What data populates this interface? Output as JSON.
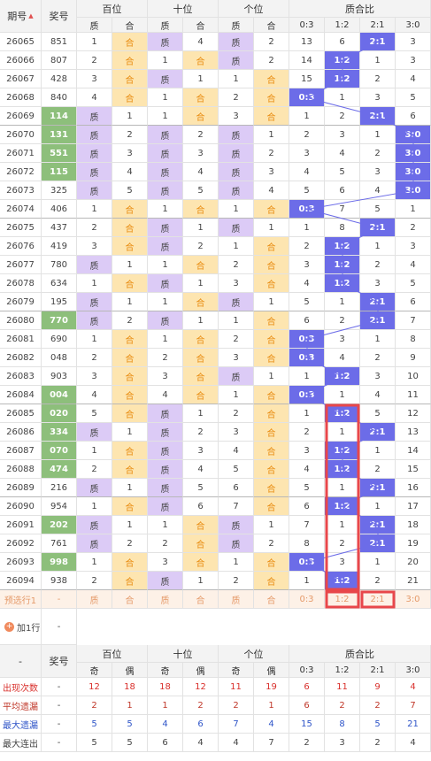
{
  "header": {
    "issue": "期号",
    "number": "奖号",
    "groups": [
      "百位",
      "十位",
      "个位",
      "质合比"
    ],
    "sub": [
      "质",
      "合",
      "质",
      "合",
      "质",
      "合",
      "0:3",
      "1:2",
      "2:1",
      "3:0"
    ]
  },
  "rows": [
    {
      "cells": [
        "26065",
        "851",
        "1",
        "合",
        "质",
        "4",
        "质",
        "2",
        "13",
        "6",
        "2:1",
        "3"
      ]
    },
    {
      "cells": [
        "26066",
        "807",
        "2",
        "合",
        "1",
        "合",
        "质",
        "2",
        "14",
        "1:2",
        "1",
        "3"
      ]
    },
    {
      "cells": [
        "26067",
        "428",
        "3",
        "合",
        "质",
        "1",
        "1",
        "合",
        "15",
        "1:2",
        "2",
        "4"
      ]
    },
    {
      "cells": [
        "26068",
        "840",
        "4",
        "合",
        "1",
        "合",
        "2",
        "合",
        "0:3",
        "1",
        "3",
        "5"
      ]
    },
    {
      "cells": [
        "26069",
        "114",
        "质",
        "1",
        "1",
        "合",
        "3",
        "合",
        "1",
        "2",
        "2:1",
        "6"
      ],
      "number_color": "#8dbf7b"
    },
    {
      "cells": [
        "26070",
        "131",
        "质",
        "2",
        "质",
        "2",
        "质",
        "1",
        "2",
        "3",
        "1",
        "3:0"
      ],
      "number_color": "#8dbf7b"
    },
    {
      "cells": [
        "26071",
        "551",
        "质",
        "3",
        "质",
        "3",
        "质",
        "2",
        "3",
        "4",
        "2",
        "3:0"
      ],
      "number_color": "#8dbf7b"
    },
    {
      "cells": [
        "26072",
        "115",
        "质",
        "4",
        "质",
        "4",
        "质",
        "3",
        "4",
        "5",
        "3",
        "3:0"
      ],
      "number_color": "#8dbf7b"
    },
    {
      "cells": [
        "26073",
        "325",
        "质",
        "5",
        "质",
        "5",
        "质",
        "4",
        "5",
        "6",
        "4",
        "3:0"
      ]
    },
    {
      "cells": [
        "26074",
        "406",
        "1",
        "合",
        "1",
        "合",
        "1",
        "合",
        "0:3",
        "7",
        "5",
        "1"
      ]
    },
    {
      "cells": [
        "26075",
        "437",
        "2",
        "合",
        "质",
        "1",
        "质",
        "1",
        "1",
        "8",
        "2:1",
        "2"
      ]
    },
    {
      "cells": [
        "26076",
        "419",
        "3",
        "合",
        "质",
        "2",
        "1",
        "合",
        "2",
        "1:2",
        "1",
        "3"
      ]
    },
    {
      "cells": [
        "26077",
        "780",
        "质",
        "1",
        "1",
        "合",
        "2",
        "合",
        "3",
        "1:2",
        "2",
        "4"
      ]
    },
    {
      "cells": [
        "26078",
        "634",
        "1",
        "合",
        "质",
        "1",
        "3",
        "合",
        "4",
        "1:2",
        "3",
        "5"
      ]
    },
    {
      "cells": [
        "26079",
        "195",
        "质",
        "1",
        "1",
        "合",
        "质",
        "1",
        "5",
        "1",
        "2:1",
        "6"
      ]
    },
    {
      "cells": [
        "26080",
        "770",
        "质",
        "2",
        "质",
        "1",
        "1",
        "合",
        "6",
        "2",
        "2:1",
        "7"
      ],
      "number_color": "#8dbf7b"
    },
    {
      "cells": [
        "26081",
        "690",
        "1",
        "合",
        "1",
        "合",
        "2",
        "合",
        "0:3",
        "3",
        "1",
        "8"
      ]
    },
    {
      "cells": [
        "26082",
        "048",
        "2",
        "合",
        "2",
        "合",
        "3",
        "合",
        "0:3",
        "4",
        "2",
        "9"
      ]
    },
    {
      "cells": [
        "26083",
        "903",
        "3",
        "合",
        "3",
        "合",
        "质",
        "1",
        "1",
        "1:2",
        "3",
        "10"
      ]
    },
    {
      "cells": [
        "26084",
        "004",
        "4",
        "合",
        "4",
        "合",
        "1",
        "合",
        "0:3",
        "1",
        "4",
        "11"
      ],
      "number_color": "#8dbf7b"
    },
    {
      "cells": [
        "26085",
        "020",
        "5",
        "合",
        "质",
        "1",
        "2",
        "合",
        "1",
        "1:2",
        "5",
        "12"
      ],
      "number_color": "#8dbf7b"
    },
    {
      "cells": [
        "26086",
        "334",
        "质",
        "1",
        "质",
        "2",
        "3",
        "合",
        "2",
        "1",
        "2:1",
        "13"
      ],
      "number_color": "#8dbf7b"
    },
    {
      "cells": [
        "26087",
        "070",
        "1",
        "合",
        "质",
        "3",
        "4",
        "合",
        "3",
        "1:2",
        "1",
        "14"
      ],
      "number_color": "#8dbf7b"
    },
    {
      "cells": [
        "26088",
        "474",
        "2",
        "合",
        "质",
        "4",
        "5",
        "合",
        "4",
        "1:2",
        "2",
        "15"
      ],
      "number_color": "#8dbf7b"
    },
    {
      "cells": [
        "26089",
        "216",
        "质",
        "1",
        "质",
        "5",
        "6",
        "合",
        "5",
        "1",
        "2:1",
        "16"
      ]
    },
    {
      "cells": [
        "26090",
        "954",
        "1",
        "合",
        "质",
        "6",
        "7",
        "合",
        "6",
        "1:2",
        "1",
        "17"
      ]
    },
    {
      "cells": [
        "26091",
        "202",
        "质",
        "1",
        "1",
        "合",
        "质",
        "1",
        "7",
        "1",
        "2:1",
        "18"
      ],
      "number_color": "#8dbf7b"
    },
    {
      "cells": [
        "26092",
        "761",
        "质",
        "2",
        "2",
        "合",
        "质",
        "2",
        "8",
        "2",
        "2:1",
        "19"
      ]
    },
    {
      "cells": [
        "26093",
        "998",
        "1",
        "合",
        "3",
        "合",
        "1",
        "合",
        "0:3",
        "3",
        "1",
        "20"
      ],
      "number_color": "#8dbf7b"
    },
    {
      "cells": [
        "26094",
        "938",
        "2",
        "合",
        "质",
        "1",
        "2",
        "合",
        "1",
        "1:2",
        "2",
        "21"
      ]
    }
  ],
  "preview": {
    "cells": [
      "预选行1",
      "-",
      "质",
      "合",
      "质",
      "合",
      "质",
      "合",
      "0:3",
      "1:2",
      "2:1",
      "3:0"
    ]
  },
  "add_row": {
    "label": "加1行",
    "value": "-"
  },
  "stats_header": {
    "first": "-",
    "number": "奖号",
    "groups": [
      "百位",
      "十位",
      "个位",
      "质合比"
    ],
    "sub": [
      "奇",
      "偶",
      "奇",
      "偶",
      "奇",
      "偶",
      "0:3",
      "1:2",
      "2:1",
      "3:0"
    ]
  },
  "stats": [
    {
      "cells": [
        "出现次数",
        "-",
        "12",
        "18",
        "18",
        "12",
        "11",
        "19",
        "6",
        "11",
        "9",
        "4"
      ],
      "color": "#d9302c"
    },
    {
      "cells": [
        "平均遗漏",
        "-",
        "2",
        "1",
        "1",
        "2",
        "2",
        "1",
        "6",
        "2",
        "2",
        "7"
      ],
      "color": "#c0392b"
    },
    {
      "cells": [
        "最大遗漏",
        "-",
        "5",
        "5",
        "4",
        "6",
        "7",
        "4",
        "15",
        "8",
        "5",
        "21"
      ],
      "color": "#2f55c8"
    },
    {
      "cells": [
        "最大连出",
        "-",
        "5",
        "5",
        "6",
        "4",
        "4",
        "7",
        "2",
        "3",
        "2",
        "4"
      ],
      "color": "#444444"
    }
  ]
}
